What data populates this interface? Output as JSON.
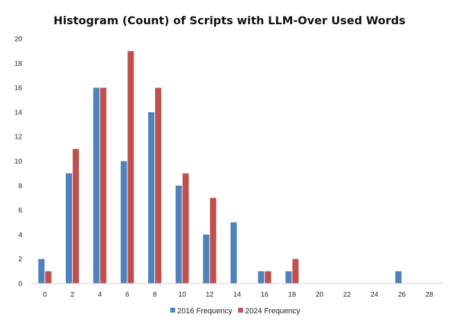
{
  "chart_data": {
    "type": "bar",
    "title": "Histogram (Count) of Scripts with LLM-Over Used Words",
    "categories": [
      "0",
      "2",
      "4",
      "6",
      "8",
      "10",
      "12",
      "14",
      "16",
      "18",
      "20",
      "22",
      "24",
      "26",
      "28"
    ],
    "series": [
      {
        "name": "2016 Frequency",
        "color": "#4F81BD",
        "values": [
          2,
          9,
          16,
          10,
          14,
          8,
          4,
          5,
          1,
          1,
          0,
          0,
          0,
          1,
          0
        ]
      },
      {
        "name": "2024 Frequency",
        "color": "#C0504D",
        "values": [
          1,
          11,
          16,
          19,
          16,
          9,
          7,
          0,
          1,
          2,
          0,
          0,
          0,
          0,
          0
        ]
      }
    ],
    "yticks": [
      "0",
      "2",
      "4",
      "6",
      "8",
      "10",
      "12",
      "14",
      "16",
      "18",
      "20"
    ],
    "ylim": [
      0,
      20
    ],
    "grid": false,
    "legend": "bottom"
  }
}
